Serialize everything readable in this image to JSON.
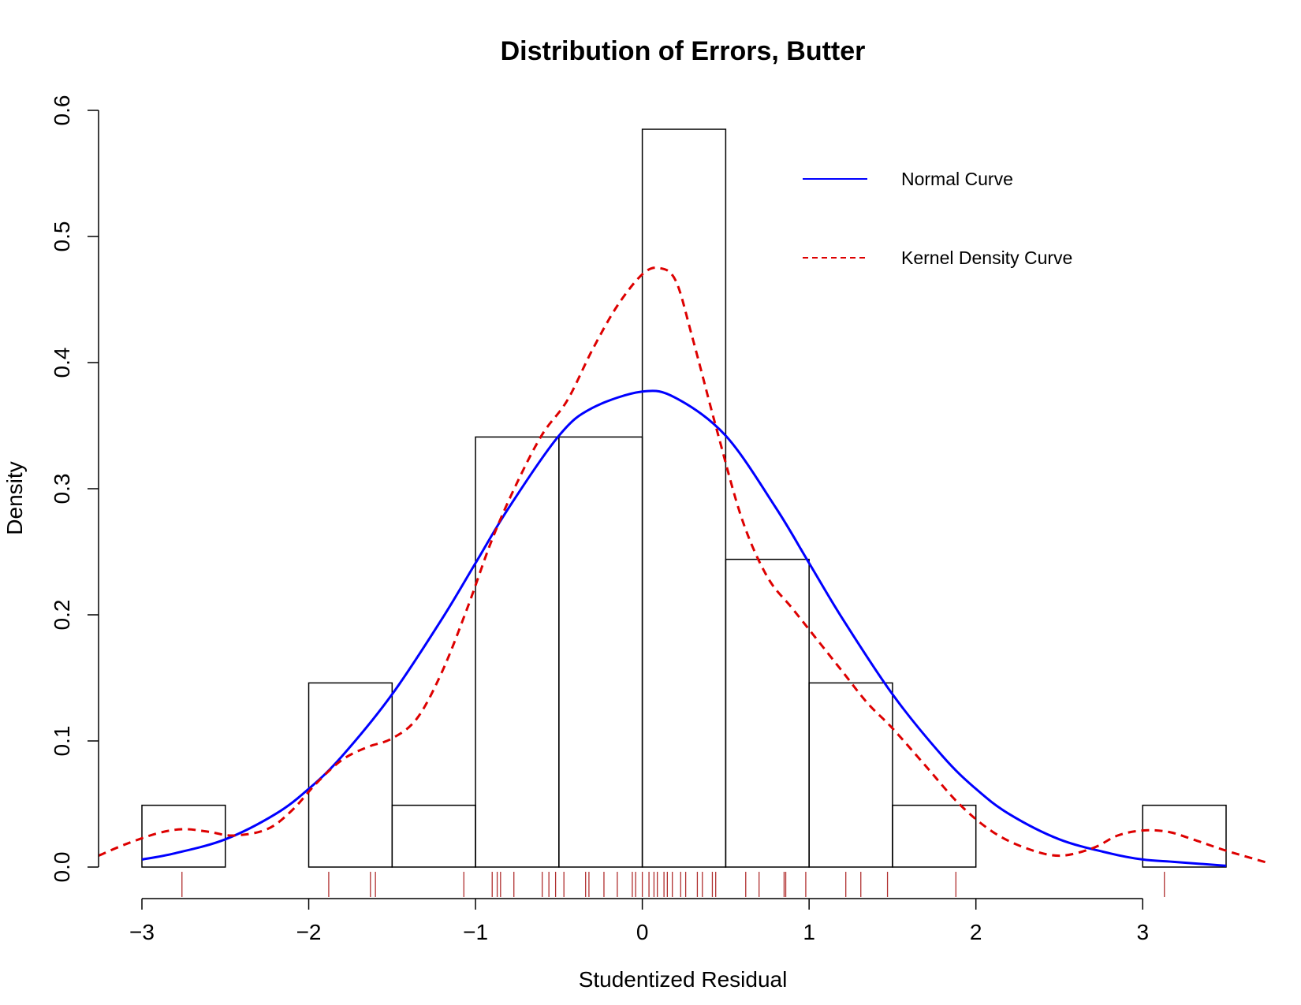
{
  "chart_data": {
    "type": "histogram",
    "title": "Distribution of Errors, Butter",
    "xlabel": "Studentized Residual",
    "ylabel": "Density",
    "xlim": [
      -3.26,
      3.76
    ],
    "ylim": [
      0,
      0.6
    ],
    "x_ticks": [
      -3,
      -2,
      -1,
      0,
      1,
      2,
      3
    ],
    "x_tick_labels": [
      "−3",
      "−2",
      "−1",
      "0",
      "1",
      "2",
      "3"
    ],
    "y_ticks": [
      0,
      0.1,
      0.2,
      0.3,
      0.4,
      0.5,
      0.6
    ],
    "y_tick_labels": [
      "0.0",
      "0.1",
      "0.2",
      "0.3",
      "0.4",
      "0.5",
      "0.6"
    ],
    "grid": false,
    "bins": [
      {
        "x0": -3.0,
        "x1": -2.5,
        "density": 0.049
      },
      {
        "x0": -2.5,
        "x1": -2.0,
        "density": 0.0
      },
      {
        "x0": -2.0,
        "x1": -1.5,
        "density": 0.146
      },
      {
        "x0": -1.5,
        "x1": -1.0,
        "density": 0.049
      },
      {
        "x0": -1.0,
        "x1": -0.5,
        "density": 0.341
      },
      {
        "x0": -0.5,
        "x1": 0.0,
        "density": 0.341
      },
      {
        "x0": 0.0,
        "x1": 0.5,
        "density": 0.585
      },
      {
        "x0": 0.5,
        "x1": 1.0,
        "density": 0.244
      },
      {
        "x0": 1.0,
        "x1": 1.5,
        "density": 0.146
      },
      {
        "x0": 1.5,
        "x1": 2.0,
        "density": 0.049
      },
      {
        "x0": 2.0,
        "x1": 2.5,
        "density": 0.0
      },
      {
        "x0": 2.5,
        "x1": 3.0,
        "density": 0.0
      },
      {
        "x0": 3.0,
        "x1": 3.5,
        "density": 0.049
      }
    ],
    "series": [
      {
        "name": "Normal Curve",
        "style": "solid",
        "color": "#0000ff",
        "x": [
          -3.0,
          -2.8,
          -2.5,
          -2.2,
          -2.0,
          -1.8,
          -1.5,
          -1.2,
          -1.0,
          -0.8,
          -0.5,
          -0.3,
          0.0,
          0.2,
          0.5,
          0.8,
          1.0,
          1.2,
          1.5,
          1.8,
          2.0,
          2.2,
          2.5,
          2.8,
          3.0,
          3.2,
          3.5
        ],
        "y": [
          0.006,
          0.011,
          0.022,
          0.042,
          0.062,
          0.088,
          0.137,
          0.197,
          0.241,
          0.285,
          0.342,
          0.364,
          0.377,
          0.372,
          0.342,
          0.285,
          0.241,
          0.197,
          0.137,
          0.088,
          0.062,
          0.042,
          0.022,
          0.011,
          0.006,
          0.004,
          0.001
        ]
      },
      {
        "name": "Kernel Density Curve",
        "style": "dashed",
        "color": "#dd0000",
        "x": [
          -3.26,
          -3.1,
          -2.9,
          -2.75,
          -2.6,
          -2.45,
          -2.25,
          -2.1,
          -1.95,
          -1.8,
          -1.65,
          -1.5,
          -1.35,
          -1.2,
          -1.05,
          -0.9,
          -0.75,
          -0.6,
          -0.45,
          -0.3,
          -0.15,
          0.0,
          0.1,
          0.2,
          0.3,
          0.45,
          0.6,
          0.75,
          0.9,
          1.05,
          1.2,
          1.35,
          1.5,
          1.7,
          1.9,
          2.1,
          2.3,
          2.5,
          2.7,
          2.85,
          3.0,
          3.15,
          3.3,
          3.5,
          3.76
        ],
        "y": [
          0.009,
          0.018,
          0.027,
          0.03,
          0.028,
          0.025,
          0.03,
          0.045,
          0.067,
          0.085,
          0.095,
          0.102,
          0.118,
          0.155,
          0.205,
          0.26,
          0.305,
          0.343,
          0.37,
          0.41,
          0.445,
          0.47,
          0.475,
          0.465,
          0.42,
          0.345,
          0.275,
          0.23,
          0.205,
          0.18,
          0.155,
          0.13,
          0.11,
          0.08,
          0.05,
          0.028,
          0.015,
          0.009,
          0.015,
          0.025,
          0.029,
          0.028,
          0.022,
          0.013,
          0.003
        ]
      }
    ],
    "rug": {
      "color": "#b03030",
      "values": [
        -2.76,
        -1.88,
        -1.63,
        -1.6,
        -1.07,
        -0.9,
        -0.87,
        -0.85,
        -0.77,
        -0.6,
        -0.56,
        -0.52,
        -0.47,
        -0.34,
        -0.32,
        -0.23,
        -0.15,
        -0.06,
        -0.04,
        0.0,
        0.04,
        0.07,
        0.09,
        0.13,
        0.15,
        0.18,
        0.23,
        0.26,
        0.33,
        0.36,
        0.42,
        0.44,
        0.62,
        0.7,
        0.85,
        0.86,
        0.98,
        1.22,
        1.31,
        1.47,
        1.88,
        3.13
      ]
    },
    "legend": {
      "position": "top-right",
      "entries": [
        {
          "label": "Normal Curve",
          "style": "solid",
          "color": "#0000ff"
        },
        {
          "label": "Kernel Density Curve",
          "style": "dashed",
          "color": "#dd0000"
        }
      ]
    }
  }
}
